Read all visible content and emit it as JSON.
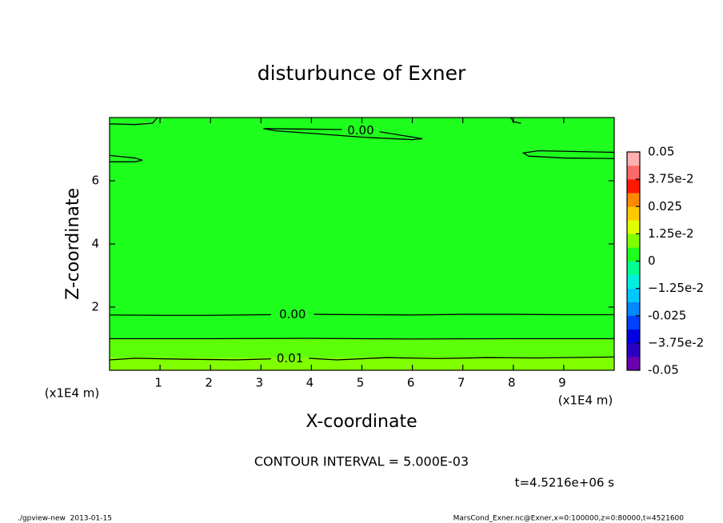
{
  "chart_data": {
    "type": "contour",
    "title": "disturbunce of Exner",
    "x_label": "X-coordinate",
    "y_label": "Z-coordinate",
    "x_unit_label": "(x1E4 m)",
    "y_unit_label": "(x1E4 m)",
    "xlim": [
      0,
      10
    ],
    "ylim": [
      0,
      8
    ],
    "xticks": [
      1,
      2,
      3,
      4,
      5,
      6,
      7,
      8,
      9
    ],
    "yticks": [
      2,
      4,
      6
    ],
    "contours": [
      {
        "level": 0,
        "label": "0.00",
        "x": [
          3.05,
          4.6,
          null,
          5.35,
          6.2,
          6.0,
          5.0,
          4.0,
          3.3,
          3.05
        ],
        "y": [
          7.65,
          7.62,
          null,
          7.55,
          7.33,
          7.3,
          7.38,
          7.5,
          7.58,
          7.65
        ]
      },
      {
        "level": 0,
        "label": "0.00",
        "x": [
          0,
          1,
          2,
          3.2,
          null,
          4.05,
          5,
          6,
          7,
          8,
          9,
          10
        ],
        "y": [
          1.75,
          1.74,
          1.74,
          1.76,
          null,
          1.77,
          1.76,
          1.75,
          1.77,
          1.77,
          1.76,
          1.76
        ]
      },
      {
        "level": 0.005,
        "x": [
          0,
          2,
          4,
          6,
          8,
          10
        ],
        "y": [
          1.0,
          1.0,
          1.01,
          0.99,
          1.0,
          1.0
        ]
      },
      {
        "level": 0.01,
        "label": "0.01",
        "x": [
          0,
          0.5,
          1.5,
          2.5,
          3.2,
          null,
          3.95,
          4.5,
          5.5,
          6.5,
          7.5,
          8.5,
          10
        ],
        "y": [
          0.33,
          0.38,
          0.35,
          0.33,
          0.36,
          null,
          0.38,
          0.33,
          0.4,
          0.37,
          0.4,
          0.39,
          0.42
        ]
      },
      {
        "level": 0,
        "x": [
          0,
          0.5,
          0.85,
          0.95
        ],
        "y": [
          7.8,
          7.78,
          7.82,
          8.0
        ]
      },
      {
        "level": 0,
        "x": [
          0,
          0.5,
          0.65,
          0.5,
          0
        ],
        "y": [
          6.8,
          6.72,
          6.65,
          6.6,
          6.6
        ]
      },
      {
        "level": 0,
        "x": [
          10,
          8.5,
          8.2,
          8.3,
          9.0,
          10
        ],
        "y": [
          6.9,
          6.95,
          6.88,
          6.78,
          6.72,
          6.7
        ]
      },
      {
        "level": 0,
        "x": [
          7.95,
          8.0,
          8.15
        ],
        "y": [
          8.0,
          7.87,
          7.82
        ]
      }
    ],
    "colorbar": {
      "lim": [
        -0.05,
        0.05
      ],
      "colors": [
        "#6a00b0",
        "#2a00c0",
        "#0000e0",
        "#0040ff",
        "#0088ff",
        "#00c8ff",
        "#00f0e0",
        "#00ff90",
        "#1eff1e",
        "#80ff00",
        "#e0ff00",
        "#ffc800",
        "#ff8800",
        "#ff1800",
        "#ff6868",
        "#ffb0b0"
      ],
      "ticks": [
        -0.05,
        {
          "value": -0.0375,
          "label": "−3.75e-2"
        },
        -0.025,
        {
          "value": -0.0125,
          "label": "−1.25e-2"
        },
        0,
        {
          "value": 0.0125,
          "label": "1.25e-2"
        },
        0.025,
        {
          "value": 0.0375,
          "label": "3.75e-2"
        },
        0.05
      ]
    },
    "contour_interval": "CONTOUR INTERVAL = 5.000E-03",
    "time_label": "t=4.5216e+06 s",
    "footer_left": "./gpview-new  2013-01-15",
    "footer_right": "MarsCond_Exner.nc@Exner,x=0:100000,z=0:80000,t=4521600"
  }
}
